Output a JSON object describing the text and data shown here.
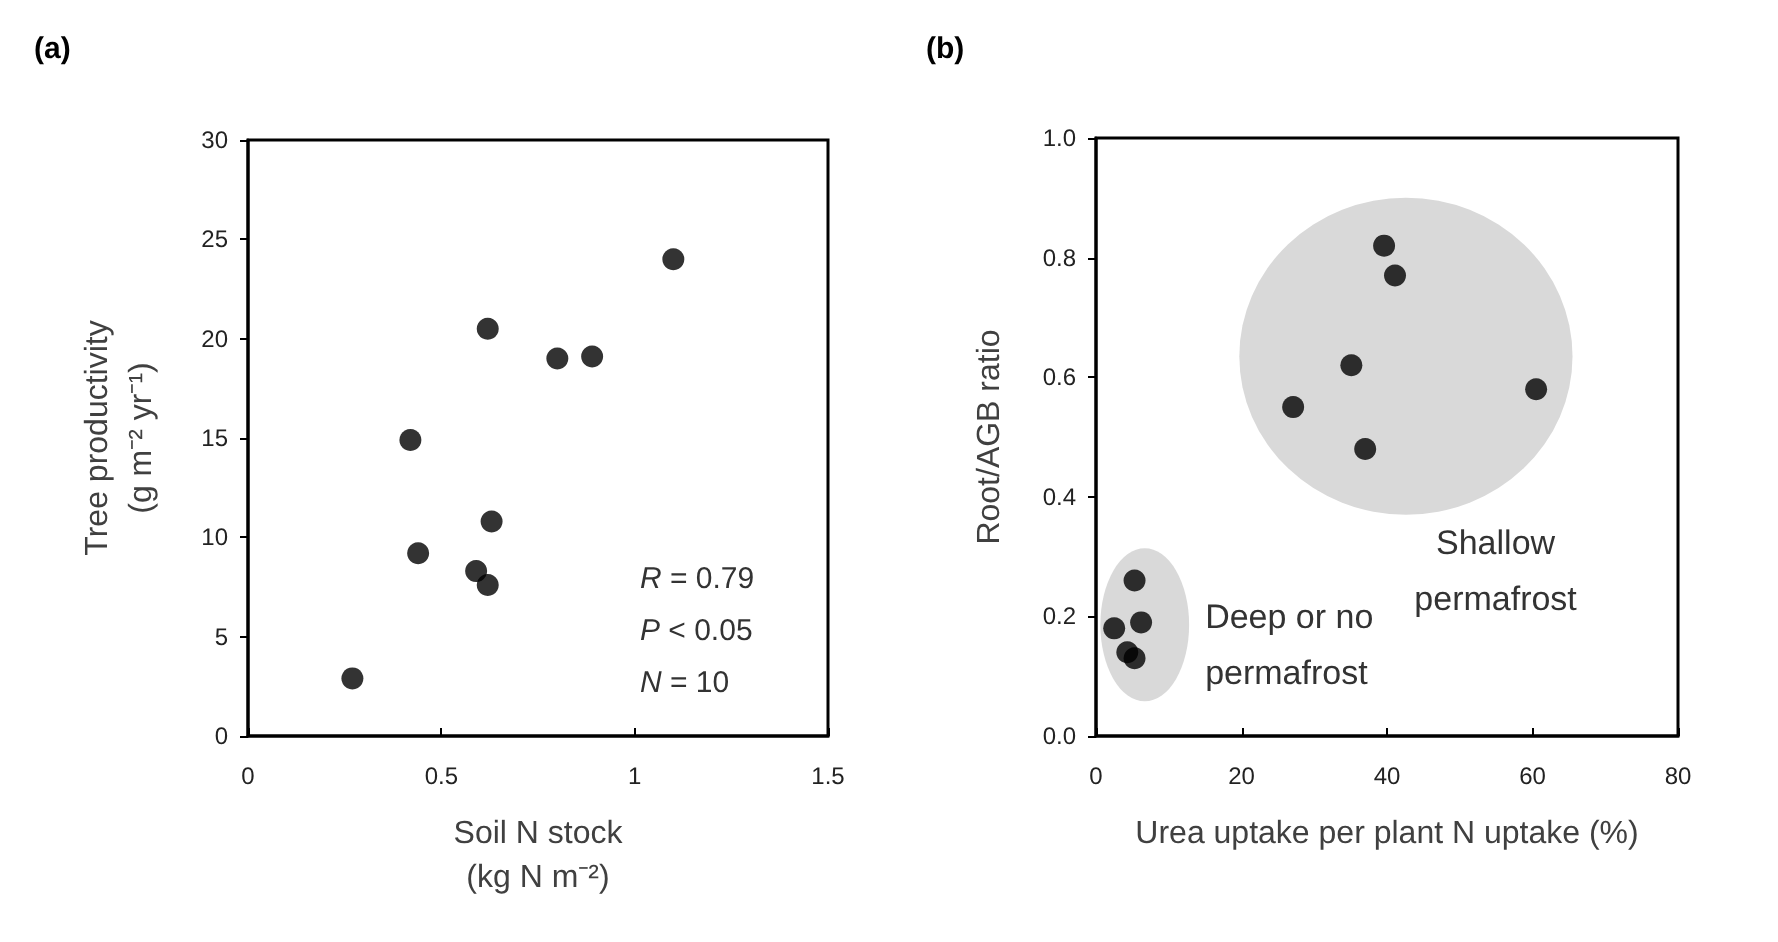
{
  "chart_data": [
    {
      "type": "scatter",
      "title": "(a)",
      "xlabel": "Soil N stock\n(kg N m⁻²)",
      "ylabel": "Tree productivity\n(g m⁻² yr⁻¹)",
      "x": [
        0.27,
        0.42,
        0.44,
        0.62,
        0.59,
        0.62,
        0.63,
        0.8,
        0.89,
        1.1
      ],
      "series": [
        {
          "color": "#000000",
          "values": [
            2.9,
            14.9,
            9.2,
            20.5,
            8.3,
            7.6,
            10.8,
            19.0,
            19.1,
            24.0
          ]
        }
      ],
      "xlim": [
        0,
        1.5
      ],
      "xticks": [
        0,
        0.5,
        1,
        1.5
      ],
      "ylim": [
        0,
        30
      ],
      "yticks": [
        0,
        5,
        10,
        15,
        20,
        25,
        30
      ],
      "annotations": [
        "R = 0.79",
        "P < 0.05",
        "N = 10"
      ],
      "marker": "circle",
      "grid": false
    },
    {
      "type": "scatter",
      "title": "(b)",
      "xlabel": "Urea uptake per plant N uptake (%)",
      "ylabel": "Root/AGB ratio",
      "x": [
        39.6,
        41.1,
        35.1,
        27.1,
        37.0,
        60.5,
        5.3,
        6.2,
        2.5,
        4.3,
        5.3
      ],
      "series": [
        {
          "color": "#000000",
          "values": [
            0.82,
            0.77,
            0.62,
            0.55,
            0.48,
            0.58,
            0.26,
            0.19,
            0.18,
            0.14,
            0.13
          ]
        }
      ],
      "xlim": [
        0,
        80
      ],
      "xticks": [
        0,
        20,
        40,
        60,
        80
      ],
      "ylim": [
        0,
        1
      ],
      "yticks": [
        {
          "value": 0,
          "label": "0.0"
        },
        {
          "value": 0.2,
          "label": "0.2"
        },
        {
          "value": 0.4,
          "label": "0.4"
        },
        {
          "value": 0.6,
          "label": "0.6"
        },
        {
          "value": 0.8,
          "label": "0.8"
        },
        {
          "value": 1,
          "label": "1.0"
        }
      ],
      "annotations": [
        "Deep or no permafrost",
        "Shallow permafrost"
      ],
      "marker": "circle",
      "grid": false
    }
  ]
}
